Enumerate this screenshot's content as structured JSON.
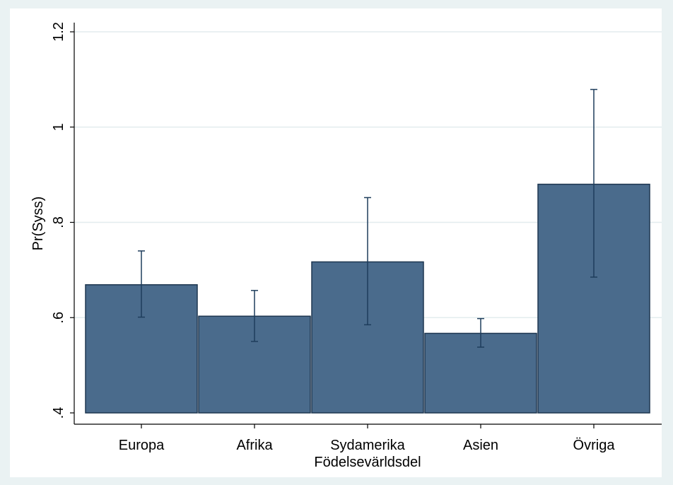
{
  "chart_data": {
    "type": "bar",
    "categories": [
      "Europa",
      "Afrika",
      "Sydamerika",
      "Asien",
      "Övriga"
    ],
    "values": [
      0.669,
      0.603,
      0.717,
      0.567,
      0.88
    ],
    "ci_lower": [
      0.601,
      0.55,
      0.585,
      0.538,
      0.685
    ],
    "ci_upper": [
      0.74,
      0.657,
      0.852,
      0.598,
      1.079
    ],
    "xlabel": "Födelsevärldsdel",
    "ylabel": "Pr(Syss)",
    "ylim": [
      0.4,
      1.2
    ],
    "yticks": [
      0.4,
      0.6,
      0.8,
      1.0,
      1.2
    ],
    "ytick_labels": [
      ".4",
      ".6",
      ".8",
      "1",
      "1.2"
    ],
    "grid": true,
    "colors": {
      "bar_fill": "#4a6b8c",
      "bar_edge": "#1e3750",
      "error_bar": "#1e3d5c",
      "grid": "#e3ecee",
      "outer_background": "#eaf2f3",
      "plot_background": "#ffffff"
    }
  }
}
